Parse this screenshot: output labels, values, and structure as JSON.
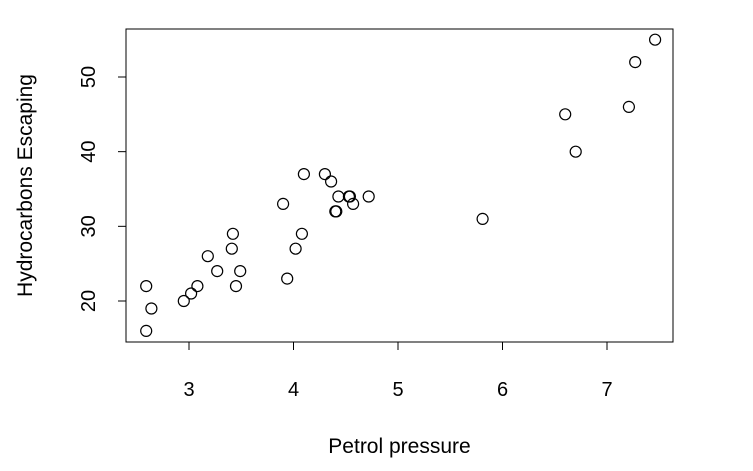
{
  "chart_data": {
    "type": "scatter",
    "title": "",
    "xlabel": "Petrol pressure",
    "ylabel": "Hydrocarbons Escaping",
    "xlim": [
      2.5,
      7.5
    ],
    "ylim": [
      15,
      55
    ],
    "x_ticks": [
      3,
      4,
      5,
      6,
      7
    ],
    "x_tick_labels": [
      "3",
      "4",
      "5",
      "6",
      "7"
    ],
    "y_ticks": [
      20,
      30,
      40,
      50
    ],
    "y_tick_labels": [
      "20",
      "30",
      "40",
      "50"
    ],
    "grid": false,
    "legend": "none",
    "marker": "open-circle",
    "colors": {
      "axis": "#000000",
      "marker": "#000000"
    },
    "points": [
      {
        "x": 2.59,
        "y": 16
      },
      {
        "x": 2.59,
        "y": 22
      },
      {
        "x": 2.64,
        "y": 19
      },
      {
        "x": 2.95,
        "y": 20
      },
      {
        "x": 3.02,
        "y": 21
      },
      {
        "x": 3.08,
        "y": 22
      },
      {
        "x": 3.18,
        "y": 26
      },
      {
        "x": 3.27,
        "y": 24
      },
      {
        "x": 3.41,
        "y": 27
      },
      {
        "x": 3.42,
        "y": 29
      },
      {
        "x": 3.45,
        "y": 22
      },
      {
        "x": 3.49,
        "y": 24
      },
      {
        "x": 3.9,
        "y": 33
      },
      {
        "x": 3.94,
        "y": 23
      },
      {
        "x": 4.02,
        "y": 27
      },
      {
        "x": 4.08,
        "y": 29
      },
      {
        "x": 4.1,
        "y": 37
      },
      {
        "x": 4.3,
        "y": 37
      },
      {
        "x": 4.36,
        "y": 36
      },
      {
        "x": 4.4,
        "y": 32
      },
      {
        "x": 4.41,
        "y": 32
      },
      {
        "x": 4.43,
        "y": 34
      },
      {
        "x": 4.53,
        "y": 34
      },
      {
        "x": 4.54,
        "y": 34
      },
      {
        "x": 4.57,
        "y": 33
      },
      {
        "x": 4.72,
        "y": 34
      },
      {
        "x": 5.81,
        "y": 31
      },
      {
        "x": 6.6,
        "y": 45
      },
      {
        "x": 6.7,
        "y": 40
      },
      {
        "x": 7.21,
        "y": 46
      },
      {
        "x": 7.27,
        "y": 52
      },
      {
        "x": 7.46,
        "y": 55
      }
    ]
  }
}
